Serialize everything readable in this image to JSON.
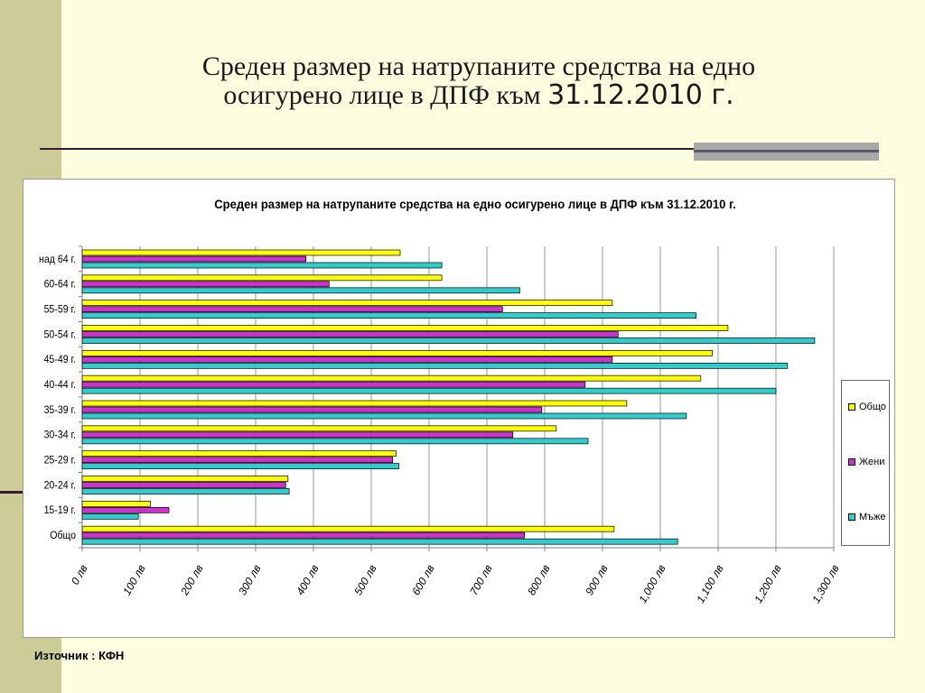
{
  "slide": {
    "title_line1": "Среден размер на натрупаните средства на едно",
    "title_line2": "осигурено лице в ДПФ към ",
    "title_date": "31.12.2010 г.",
    "source": "Източник : КФН"
  },
  "colors": {
    "obshto": "#ffff00",
    "zheni": "#cc33cc",
    "mazhe": "#33cccc",
    "accent_band": "#cccc99"
  },
  "chart_data": {
    "type": "bar",
    "orientation": "horizontal",
    "title": "Среден размер на натрупаните средства на едно осигурено лице в ДПФ към 31.12.2010 г.",
    "categories": [
      "над 64 г.",
      "60-64 г.",
      "55-59 г.",
      "50-54 г.",
      "45-49 г.",
      "40-44 г.",
      "35-39 г.",
      "30-34 г.",
      "25-29 г.",
      "20-24 г.",
      "15-19 г.",
      "Общо"
    ],
    "series": [
      {
        "name": "Общо",
        "color": "#ffff00",
        "values": [
          550,
          622,
          917,
          1117,
          1090,
          1070,
          942,
          820,
          543,
          356,
          118,
          920
        ]
      },
      {
        "name": "Жени",
        "color": "#cc33cc",
        "values": [
          387,
          427,
          727,
          927,
          917,
          870,
          795,
          745,
          537,
          352,
          150,
          765
        ]
      },
      {
        "name": "Мъже",
        "color": "#33cccc",
        "values": [
          622,
          757,
          1062,
          1267,
          1220,
          1200,
          1045,
          875,
          548,
          358,
          97,
          1030
        ]
      }
    ],
    "xlim": [
      0,
      1300
    ],
    "xticks": [
      "0 лв",
      "100 лв",
      "200 лв",
      "300 лв",
      "400 лв",
      "500 лв",
      "600 лв",
      "700 лв",
      "800 лв",
      "900 лв",
      "1,000 лв",
      "1,100 лв",
      "1,200 лв",
      "1,300 лв"
    ],
    "grid": "vertical",
    "legend_position": "right"
  }
}
